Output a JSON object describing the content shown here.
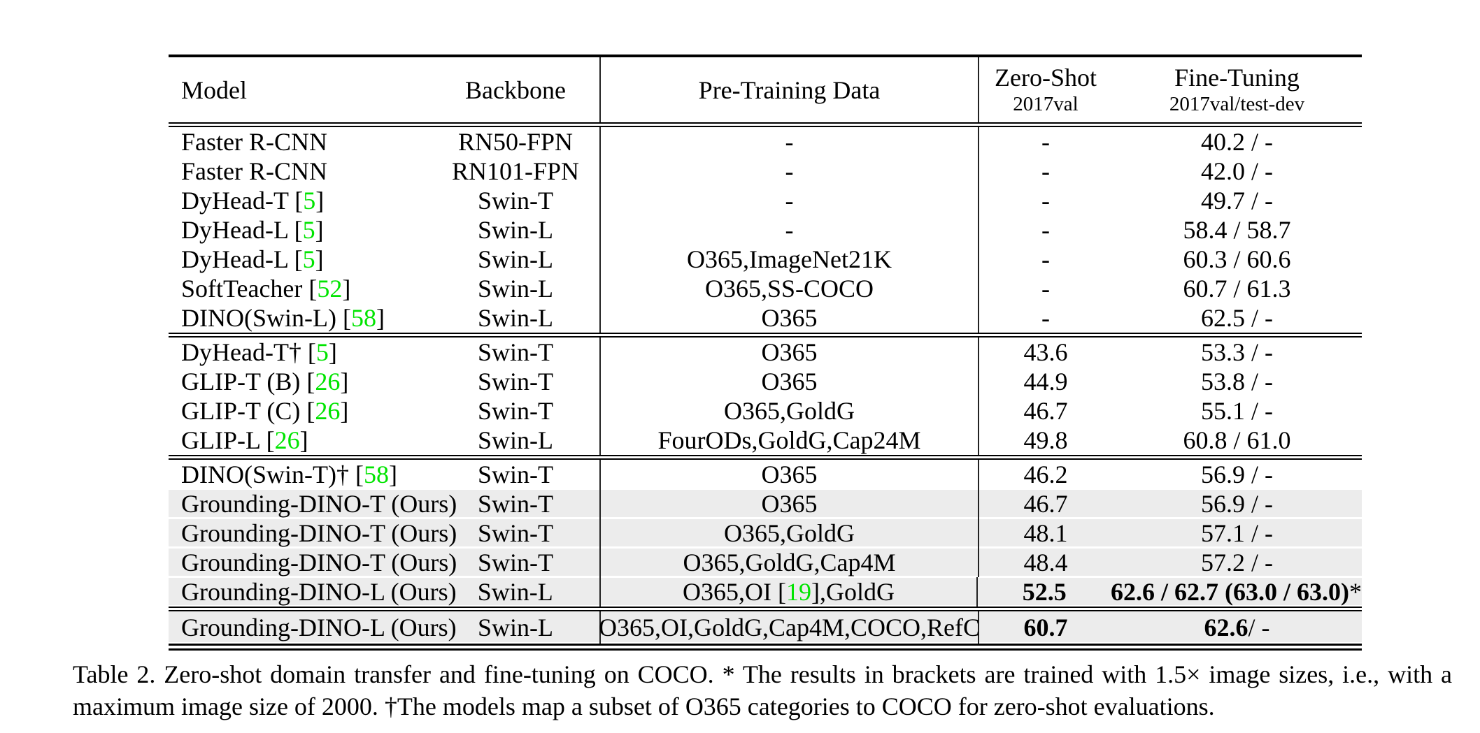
{
  "colors": {
    "cite_green": "#00e400",
    "row_highlight": "#ececec",
    "rule_black": "#000000"
  },
  "table": {
    "header": {
      "model": "Model",
      "backbone": "Backbone",
      "pretrain": "Pre-Training Data",
      "zeroshot": "Zero-Shot",
      "zeroshot_sub": "2017val",
      "finetune": "Fine-Tuning",
      "finetune_sub": "2017val/test-dev"
    },
    "groups": [
      {
        "rows": [
          {
            "model": [
              [
                "Faster R-CNN",
                ""
              ]
            ],
            "backbone": "RN50-FPN",
            "pretrain": [
              [
                "-",
                ""
              ]
            ],
            "zs": [
              [
                "-",
                ""
              ]
            ],
            "ft": [
              [
                "40.2 / -",
                ""
              ]
            ],
            "hl": false
          },
          {
            "model": [
              [
                "Faster R-CNN",
                ""
              ]
            ],
            "backbone": "RN101-FPN",
            "pretrain": [
              [
                "-",
                ""
              ]
            ],
            "zs": [
              [
                "-",
                ""
              ]
            ],
            "ft": [
              [
                "42.0 / -",
                ""
              ]
            ],
            "hl": false
          },
          {
            "model": [
              [
                "DyHead-T [",
                ""
              ],
              [
                "5",
                "g"
              ],
              [
                "]",
                ""
              ]
            ],
            "backbone": "Swin-T",
            "pretrain": [
              [
                "-",
                ""
              ]
            ],
            "zs": [
              [
                "-",
                ""
              ]
            ],
            "ft": [
              [
                "49.7 / -",
                ""
              ]
            ],
            "hl": false
          },
          {
            "model": [
              [
                "DyHead-L [",
                ""
              ],
              [
                "5",
                "g"
              ],
              [
                "]",
                ""
              ]
            ],
            "backbone": "Swin-L",
            "pretrain": [
              [
                "-",
                ""
              ]
            ],
            "zs": [
              [
                "-",
                ""
              ]
            ],
            "ft": [
              [
                "58.4 / 58.7",
                ""
              ]
            ],
            "hl": false
          },
          {
            "model": [
              [
                "DyHead-L [",
                ""
              ],
              [
                "5",
                "g"
              ],
              [
                "]",
                ""
              ]
            ],
            "backbone": "Swin-L",
            "pretrain": [
              [
                "O365,ImageNet21K",
                ""
              ]
            ],
            "zs": [
              [
                "-",
                ""
              ]
            ],
            "ft": [
              [
                "60.3 / 60.6",
                ""
              ]
            ],
            "hl": false
          },
          {
            "model": [
              [
                "SoftTeacher [",
                ""
              ],
              [
                "52",
                "g"
              ],
              [
                "]",
                ""
              ]
            ],
            "backbone": "Swin-L",
            "pretrain": [
              [
                "O365,SS-COCO",
                ""
              ]
            ],
            "zs": [
              [
                "-",
                ""
              ]
            ],
            "ft": [
              [
                "60.7 / 61.3",
                ""
              ]
            ],
            "hl": false
          },
          {
            "model": [
              [
                "DINO(Swin-L) [",
                ""
              ],
              [
                "58",
                "g"
              ],
              [
                "]",
                ""
              ]
            ],
            "backbone": "Swin-L",
            "pretrain": [
              [
                "O365",
                ""
              ]
            ],
            "zs": [
              [
                "-",
                ""
              ]
            ],
            "ft": [
              [
                "62.5 / -",
                ""
              ]
            ],
            "hl": false
          }
        ]
      },
      {
        "rows": [
          {
            "model": [
              [
                "DyHead-T† [",
                ""
              ],
              [
                "5",
                "g"
              ],
              [
                "]",
                ""
              ]
            ],
            "backbone": "Swin-T",
            "pretrain": [
              [
                "O365",
                ""
              ]
            ],
            "zs": [
              [
                "43.6",
                ""
              ]
            ],
            "ft": [
              [
                "53.3 / -",
                ""
              ]
            ],
            "hl": false
          },
          {
            "model": [
              [
                "GLIP-T (B) [",
                ""
              ],
              [
                "26",
                "g"
              ],
              [
                "]",
                ""
              ]
            ],
            "backbone": "Swin-T",
            "pretrain": [
              [
                "O365",
                ""
              ]
            ],
            "zs": [
              [
                "44.9",
                ""
              ]
            ],
            "ft": [
              [
                "53.8 / -",
                ""
              ]
            ],
            "hl": false
          },
          {
            "model": [
              [
                "GLIP-T (C) [",
                ""
              ],
              [
                "26",
                "g"
              ],
              [
                "]",
                ""
              ]
            ],
            "backbone": "Swin-T",
            "pretrain": [
              [
                "O365,GoldG",
                ""
              ]
            ],
            "zs": [
              [
                "46.7",
                ""
              ]
            ],
            "ft": [
              [
                "55.1 / -",
                ""
              ]
            ],
            "hl": false
          },
          {
            "model": [
              [
                "GLIP-L [",
                ""
              ],
              [
                "26",
                "g"
              ],
              [
                "]",
                ""
              ]
            ],
            "backbone": "Swin-L",
            "pretrain": [
              [
                "FourODs,GoldG,Cap24M",
                ""
              ]
            ],
            "zs": [
              [
                "49.8",
                ""
              ]
            ],
            "ft": [
              [
                "60.8 / 61.0",
                ""
              ]
            ],
            "hl": false
          }
        ]
      },
      {
        "rows": [
          {
            "model": [
              [
                "DINO(Swin-T)† [",
                ""
              ],
              [
                "58",
                "g"
              ],
              [
                "]",
                ""
              ]
            ],
            "backbone": "Swin-T",
            "pretrain": [
              [
                "O365",
                ""
              ]
            ],
            "zs": [
              [
                "46.2",
                ""
              ]
            ],
            "ft": [
              [
                "56.9 / -",
                ""
              ]
            ],
            "hl": false
          },
          {
            "model": [
              [
                "Grounding-DINO-T (Ours)",
                ""
              ]
            ],
            "backbone": "Swin-T",
            "pretrain": [
              [
                "O365",
                ""
              ]
            ],
            "zs": [
              [
                "46.7",
                ""
              ]
            ],
            "ft": [
              [
                "56.9 / -",
                ""
              ]
            ],
            "hl": true
          },
          {
            "model": [
              [
                "Grounding-DINO-T (Ours)",
                ""
              ]
            ],
            "backbone": "Swin-T",
            "pretrain": [
              [
                "O365,GoldG",
                ""
              ]
            ],
            "zs": [
              [
                "48.1",
                ""
              ]
            ],
            "ft": [
              [
                "57.1 / -",
                ""
              ]
            ],
            "hl": true
          },
          {
            "model": [
              [
                "Grounding-DINO-T (Ours)",
                ""
              ]
            ],
            "backbone": "Swin-T",
            "pretrain": [
              [
                "O365,GoldG,Cap4M",
                ""
              ]
            ],
            "zs": [
              [
                "48.4",
                ""
              ]
            ],
            "ft": [
              [
                "57.2 / -",
                ""
              ]
            ],
            "hl": true
          },
          {
            "model": [
              [
                "Grounding-DINO-L (Ours)",
                ""
              ]
            ],
            "backbone": "Swin-L",
            "pretrain": [
              [
                "O365,OI [",
                ""
              ],
              [
                "19",
                "g"
              ],
              [
                "],GoldG",
                ""
              ]
            ],
            "zs": [
              [
                "52.5",
                "b"
              ]
            ],
            "ft": [
              [
                "62.6 / 62.7 (63.0 / 63.0)",
                "b"
              ],
              [
                "*",
                ""
              ]
            ],
            "hl": true
          }
        ]
      },
      {
        "rows": [
          {
            "model": [
              [
                "Grounding-DINO-L (Ours)",
                ""
              ]
            ],
            "backbone": "Swin-L",
            "pretrain": [
              [
                "O365,OI,GoldG,Cap4M,COCO,RefC",
                ""
              ]
            ],
            "zs": [
              [
                "60.7",
                "b"
              ]
            ],
            "ft": [
              [
                "62.6",
                "b"
              ],
              [
                " / -",
                ""
              ]
            ],
            "hl": true,
            "last": true
          }
        ]
      }
    ]
  },
  "caption": {
    "line1": "Table 2.  Zero-shot domain transfer and fine-tuning on COCO. * The results in brackets are trained with 1.5× image sizes, i.e., with a",
    "line2": "maximum image size of 2000. †The models map a subset of O365 categories to COCO for zero-shot evaluations."
  }
}
